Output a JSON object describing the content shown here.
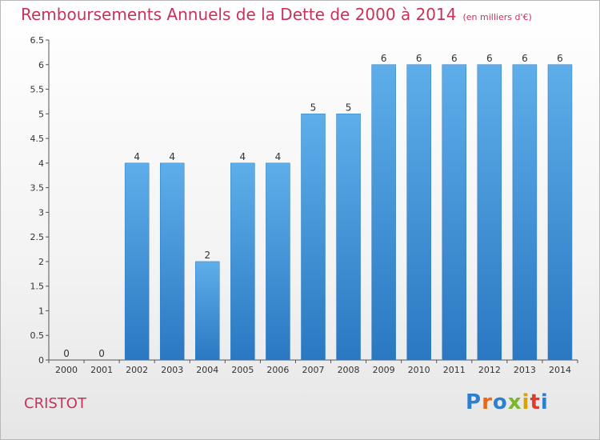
{
  "header": {
    "title": "Remboursements Annuels de la Dette de 2000 à 2014",
    "unit": "(en milliers d'€)"
  },
  "footer": {
    "commune": "CRISTOT",
    "logo": [
      "P",
      "r",
      "o",
      "x",
      "i",
      "t",
      "i"
    ],
    "logo_colors": [
      "#2d7fd0",
      "#e36a1b",
      "#2d7fd0",
      "#7ab72b",
      "#d9a200",
      "#e23a2b",
      "#2d7fd0"
    ]
  },
  "chart_data": {
    "type": "bar",
    "title": "Remboursements Annuels de la Dette de 2000 à 2014",
    "categories": [
      "2000",
      "2001",
      "2002",
      "2003",
      "2004",
      "2005",
      "2006",
      "2007",
      "2008",
      "2009",
      "2010",
      "2011",
      "2012",
      "2013",
      "2014"
    ],
    "values": [
      0,
      0,
      4,
      4,
      2,
      4,
      4,
      5,
      5,
      6,
      6,
      6,
      6,
      6,
      6
    ],
    "data_labels": [
      "0",
      "0",
      "4",
      "4",
      "2",
      "4",
      "4",
      "5",
      "5",
      "6",
      "6",
      "6",
      "6",
      "6",
      "6"
    ],
    "yticks": [
      "0",
      "0.5",
      "1",
      "1.5",
      "2",
      "2.5",
      "3",
      "3.5",
      "4",
      "4.5",
      "5",
      "5.5",
      "6",
      "6.5"
    ],
    "ylim": [
      0,
      6.5
    ],
    "grid": false,
    "bar_color": "#3d93dc"
  }
}
